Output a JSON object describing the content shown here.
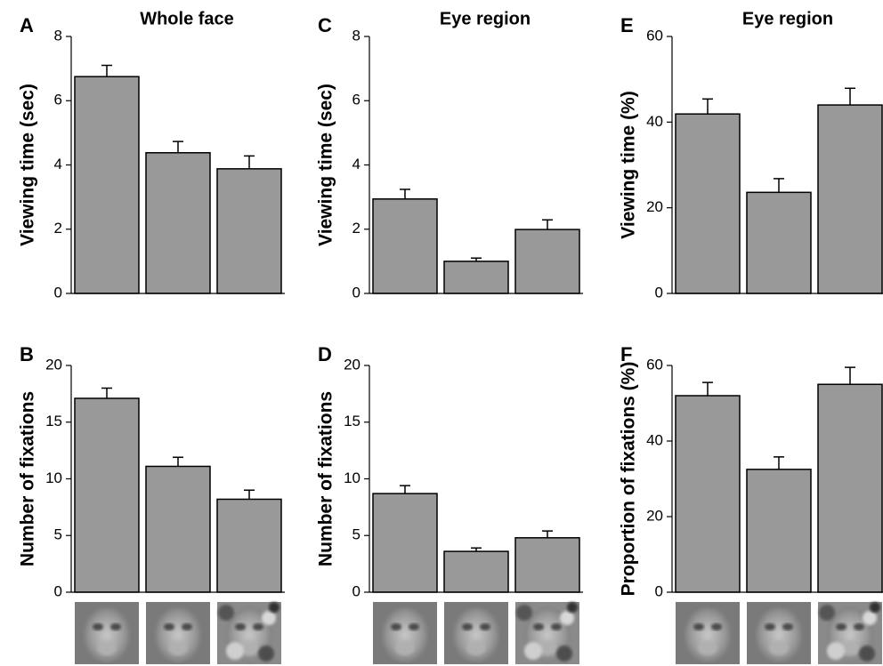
{
  "chart_data": [
    {
      "type": "bar",
      "label": "A",
      "title": "Whole face",
      "ylabel": "Viewing time (sec)",
      "categories": [
        null,
        null,
        null
      ],
      "values": [
        6.75,
        4.38,
        3.88
      ],
      "errors": [
        0.35,
        0.35,
        0.4
      ],
      "color": "#999999",
      "ylim": [
        0,
        8
      ],
      "yticks": [
        0,
        2,
        4,
        6,
        8
      ]
    },
    {
      "type": "bar",
      "label": "B",
      "ylabel": "Number of fixations",
      "categories": [
        null,
        null,
        null
      ],
      "values": [
        17.1,
        11.1,
        8.2
      ],
      "errors": [
        0.9,
        0.8,
        0.8
      ],
      "color": "#999999",
      "ylim": [
        0,
        20
      ],
      "yticks": [
        0,
        5,
        10,
        15,
        20
      ]
    },
    {
      "type": "bar",
      "label": "C",
      "title": "Eye region",
      "ylabel": "Viewing time (sec)",
      "categories": [
        null,
        null,
        null
      ],
      "values": [
        2.94,
        1.0,
        1.99
      ],
      "errors": [
        0.3,
        0.1,
        0.3
      ],
      "color": "#999999",
      "ylim": [
        0,
        8
      ],
      "yticks": [
        0,
        2,
        4,
        6,
        8
      ]
    },
    {
      "type": "bar",
      "label": "D",
      "ylabel": "Number of fixations",
      "categories": [
        null,
        null,
        null
      ],
      "values": [
        8.7,
        3.6,
        4.8
      ],
      "errors": [
        0.7,
        0.3,
        0.6
      ],
      "color": "#999999",
      "ylim": [
        0,
        20
      ],
      "yticks": [
        0,
        5,
        10,
        15,
        20
      ]
    },
    {
      "type": "bar",
      "label": "E",
      "title": "Eye region",
      "ylabel": "Viewing time (%)",
      "categories": [
        null,
        null,
        null
      ],
      "values": [
        41.9,
        23.6,
        44
      ],
      "errors": [
        3.5,
        3.2,
        3.9
      ],
      "color": "#999999",
      "ylim": [
        0,
        60
      ],
      "yticks": [
        0,
        20,
        40,
        60
      ]
    },
    {
      "type": "bar",
      "label": "F",
      "ylabel": "Proportion of fixations (%)",
      "categories": [
        null,
        null,
        null
      ],
      "values": [
        52,
        32.5,
        55
      ],
      "errors": [
        3.5,
        3.3,
        4.5
      ],
      "color": "#999999",
      "ylim": [
        0,
        60
      ],
      "yticks": [
        0,
        20,
        40,
        60
      ]
    }
  ]
}
